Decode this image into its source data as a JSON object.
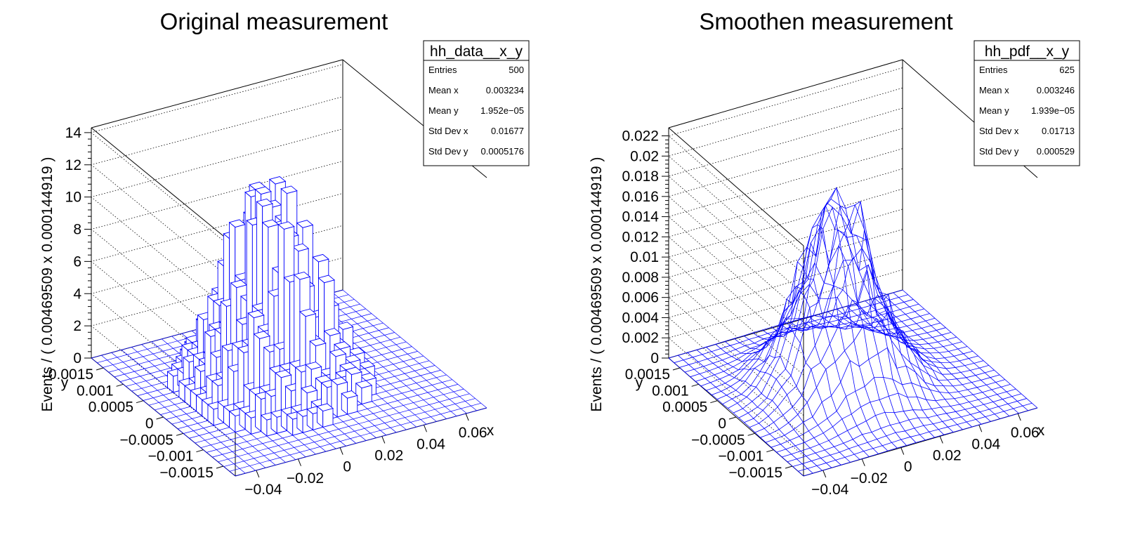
{
  "chart_data": [
    {
      "type": "lego3d",
      "title": "Original measurement",
      "xlabel": "x",
      "ylabel": "y",
      "zlabel": "Events / ( 0.00469509 x 0.000144919 )",
      "xlim": [
        -0.05,
        0.07
      ],
      "ylim": [
        -0.0018,
        0.0018
      ],
      "zlim": [
        0,
        14.3
      ],
      "x_ticks": [
        "−0.04",
        "−0.02",
        "0",
        "0.02",
        "0.04",
        "0.06"
      ],
      "y_ticks": [
        "−0.0015",
        "−0.001",
        "−0.0005",
        "0",
        "0.0005",
        "0.001",
        "0.0015"
      ],
      "z_ticks": [
        "0",
        "2",
        "4",
        "6",
        "8",
        "10",
        "12",
        "14"
      ],
      "grid": true,
      "stats": {
        "name": "hh_data__x_y",
        "rows": [
          {
            "label": "Entries",
            "value": "500"
          },
          {
            "label": "Mean x",
            "value": "0.003234"
          },
          {
            "label": "Mean y",
            "value": "1.952e−05"
          },
          {
            "label": "Std Dev x",
            "value": "0.01677"
          },
          {
            "label": "Std Dev y",
            "value": "0.0005176"
          }
        ]
      },
      "bins": 25,
      "series": [
        {
          "color": "#0000ff",
          "values_approx": "Gaussian peak ~12 events centered at x≈0.003, y≈0; occupied bins span x≈−0.04..0.04"
        }
      ]
    },
    {
      "type": "surface3d",
      "title": "Smoothen measurement",
      "xlabel": "x",
      "ylabel": "y",
      "zlabel": "Events / ( 0.00469509 x 0.000144919 )",
      "xlim": [
        -0.05,
        0.07
      ],
      "ylim": [
        -0.0018,
        0.0018
      ],
      "zlim": [
        0,
        0.0228
      ],
      "x_ticks": [
        "−0.04",
        "−0.02",
        "0",
        "0.02",
        "0.04",
        "0.06"
      ],
      "y_ticks": [
        "−0.0015",
        "−0.001",
        "−0.0005",
        "0",
        "0.0005",
        "0.001",
        "0.0015"
      ],
      "z_ticks": [
        "0",
        "0.002",
        "0.004",
        "0.006",
        "0.008",
        "0.01",
        "0.012",
        "0.014",
        "0.016",
        "0.018",
        "0.02",
        "0.022"
      ],
      "grid": true,
      "stats": {
        "name": "hh_pdf__x_y",
        "rows": [
          {
            "label": "Entries",
            "value": "625"
          },
          {
            "label": "Mean x",
            "value": "0.003246"
          },
          {
            "label": "Mean y",
            "value": "1.939e−05"
          },
          {
            "label": "Std Dev x",
            "value": "0.01713"
          },
          {
            "label": "Std Dev y",
            "value": "0.000529"
          }
        ]
      },
      "bins": 25,
      "series": [
        {
          "color": "#0000ff",
          "values_approx": "smooth peak max ≈0.018 near x≈0.003, y≈0"
        }
      ]
    }
  ]
}
